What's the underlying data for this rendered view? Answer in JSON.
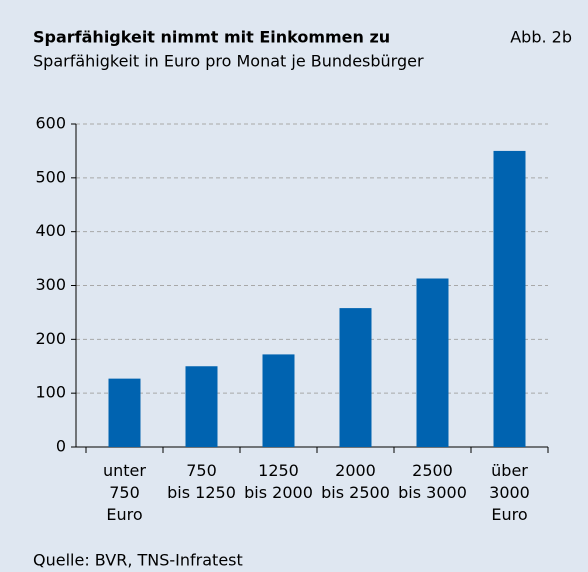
{
  "chart_data": {
    "type": "bar",
    "title": "Sparfähigkeit nimmt mit Einkommen zu",
    "figure_label": "Abb. 2b",
    "subtitle": "Sparfähigkeit in Euro pro Monat je Bundesbürger",
    "source": "Quelle: BVR, TNS-Infratest",
    "categories": [
      [
        "unter",
        "750",
        "Euro"
      ],
      [
        "750",
        "bis 1250"
      ],
      [
        "1250",
        "bis 2000"
      ],
      [
        "2000",
        "bis 2500"
      ],
      [
        "2500",
        "bis 3000"
      ],
      [
        "über",
        "3000",
        "Euro"
      ]
    ],
    "values": [
      127,
      150,
      172,
      258,
      313,
      550
    ],
    "color": "#0063b0",
    "ylim": [
      0,
      600
    ],
    "yticks": [
      0,
      100,
      200,
      300,
      400,
      500,
      600
    ],
    "grid": true
  }
}
